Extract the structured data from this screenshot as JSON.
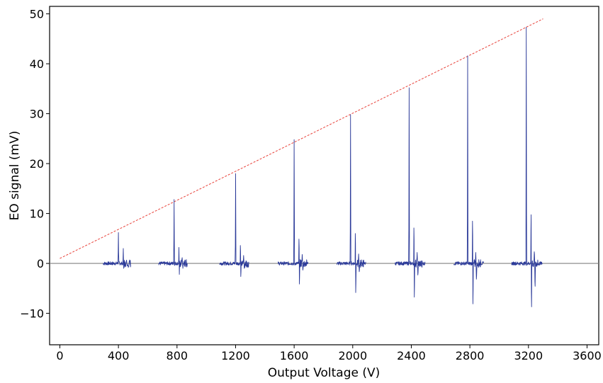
{
  "chart_data": {
    "type": "line",
    "xlabel": "Output Voltage (V)",
    "ylabel": "EO signal (mV)",
    "xlim": [
      -70,
      3680
    ],
    "ylim": [
      -16.3,
      51.5
    ],
    "xticks": [
      0,
      400,
      800,
      1200,
      1600,
      2000,
      2400,
      2800,
      3200,
      3600
    ],
    "yticks": [
      -10,
      0,
      10,
      20,
      30,
      40,
      50
    ],
    "xtick_labels": [
      "0",
      "400",
      "800",
      "1200",
      "1600",
      "2000",
      "2400",
      "2800",
      "3200",
      "3600"
    ],
    "ytick_labels": [
      "−10",
      "0",
      "10",
      "20",
      "30",
      "40",
      "50"
    ],
    "grid": false,
    "baseline": {
      "y": 0,
      "color": "#808080"
    },
    "trend_line": {
      "name": "",
      "style": "dashed",
      "color": "#e8423a",
      "x": [
        0,
        3300
      ],
      "y": [
        1.0,
        49.0
      ]
    },
    "series": [
      {
        "name": "",
        "color": "#2b3a99",
        "segments": [
          {
            "x_start": 295,
            "x_end": 485,
            "peak_x": 400,
            "peak": 6.2,
            "aux": [
              3.0,
              -1.0,
              0.8,
              -0.5
            ]
          },
          {
            "x_start": 675,
            "x_end": 870,
            "peak_x": 780,
            "peak": 12.8,
            "aux": [
              3.2,
              -2.2,
              1.4,
              -1.0
            ]
          },
          {
            "x_start": 1090,
            "x_end": 1290,
            "peak_x": 1200,
            "peak": 18.0,
            "aux": [
              4.8,
              -3.5,
              1.6,
              -1.2
            ]
          },
          {
            "x_start": 1490,
            "x_end": 1695,
            "peak_x": 1600,
            "peak": 24.8,
            "aux": [
              6.5,
              -5.5,
              1.8,
              -1.6
            ]
          },
          {
            "x_start": 1890,
            "x_end": 2090,
            "peak_x": 1985,
            "peak": 29.8,
            "aux": [
              8.0,
              -7.8,
              1.9,
              -2.0
            ]
          },
          {
            "x_start": 2290,
            "x_end": 2495,
            "peak_x": 2385,
            "peak": 35.2,
            "aux": [
              9.5,
              -9.0,
              2.2,
              -2.8
            ]
          },
          {
            "x_start": 2690,
            "x_end": 2895,
            "peak_x": 2785,
            "peak": 41.6,
            "aux": [
              11.3,
              -10.8,
              2.2,
              -3.8
            ]
          },
          {
            "x_start": 3085,
            "x_end": 3295,
            "peak_x": 3185,
            "peak": 47.3,
            "aux": [
              13.0,
              -11.6,
              2.8,
              -5.5
            ]
          }
        ]
      }
    ]
  }
}
